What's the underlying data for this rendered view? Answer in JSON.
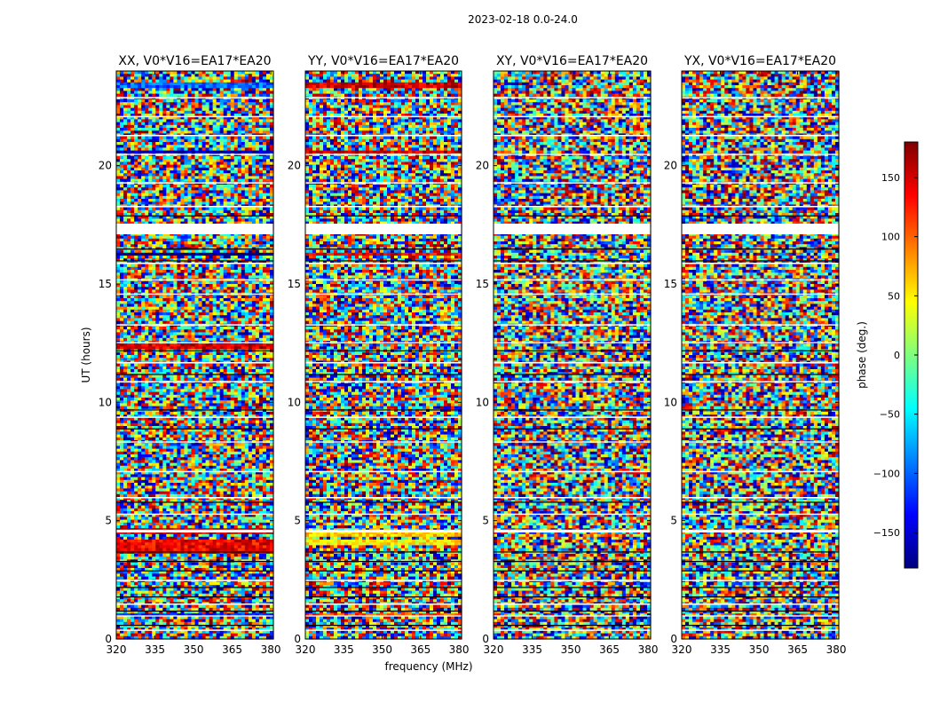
{
  "figure": {
    "suptitle": "2023-02-18 0.0-24.0",
    "xlabel": "frequency (MHz)",
    "ylabel": "UT (hours)"
  },
  "colorbar": {
    "label": "phase (deg.)",
    "range": [
      -180,
      180
    ],
    "ticks": [
      150,
      100,
      50,
      0,
      -50,
      -100,
      -150
    ],
    "tick_labels": [
      "150",
      "100",
      "50",
      "0",
      "−50",
      "−100",
      "−150"
    ],
    "colormap": "jet",
    "colors": [
      "#00007f",
      "#0000ff",
      "#007fff",
      "#00ffff",
      "#7fff7f",
      "#ffff00",
      "#ff7f00",
      "#ff0000",
      "#7f0000"
    ]
  },
  "chart_data": [
    {
      "type": "heatmap",
      "title": "XX, V0*V16=EA17*EA20",
      "x_range": [
        320,
        381
      ],
      "y_range": [
        0,
        24
      ],
      "x_ticks": [
        320,
        335,
        350,
        365,
        380
      ],
      "y_ticks": [
        0,
        5,
        10,
        15,
        20
      ],
      "y_tick_labels": [
        "0",
        "5",
        "10",
        "15",
        "20"
      ],
      "value": "phase (deg.)",
      "bands": [
        {
          "ut": [
            23.25,
            23.55
          ],
          "phase": -100
        },
        {
          "ut": [
            20.5,
            20.65
          ],
          "phase": -160
        },
        {
          "ut": [
            16.2,
            16.32
          ],
          "phase": -180
        },
        {
          "ut": [
            12.3,
            12.42
          ],
          "phase": 150
        },
        {
          "ut": [
            4.5,
            4.65
          ],
          "phase": 160
        },
        {
          "ut": [
            3.6,
            4.25
          ],
          "phase": 140
        },
        {
          "ut": [
            0.9,
            1.05
          ],
          "phase": -130
        }
      ]
    },
    {
      "type": "heatmap",
      "title": "YY, V0*V16=EA17*EA20",
      "x_range": [
        320,
        381
      ],
      "y_range": [
        0,
        24
      ],
      "x_ticks": [
        320,
        335,
        350,
        365,
        380
      ],
      "y_ticks": [
        0,
        5,
        10,
        15,
        20
      ],
      "y_tick_labels": [
        "0",
        "5",
        "10",
        "15",
        "20"
      ],
      "value": "phase (deg.)",
      "bands": [
        {
          "ut": [
            23.25,
            23.55
          ],
          "phase": 150
        },
        {
          "ut": [
            20.5,
            20.65
          ],
          "phase": 150
        },
        {
          "ut": [
            16.2,
            16.32
          ],
          "phase": 140
        },
        {
          "ut": [
            4.3,
            4.6
          ],
          "phase": 60
        },
        {
          "ut": [
            3.9,
            4.25
          ],
          "phase": 50
        },
        {
          "ut": [
            0.9,
            1.05
          ],
          "phase": 110
        }
      ]
    },
    {
      "type": "heatmap",
      "title": "XY, V0*V16=EA17*EA20",
      "x_range": [
        320,
        381
      ],
      "y_range": [
        0,
        24
      ],
      "x_ticks": [
        320,
        335,
        350,
        365,
        380
      ],
      "y_ticks": [
        0,
        5,
        10,
        15,
        20
      ],
      "y_tick_labels": [
        "0",
        "5",
        "10",
        "15",
        "20"
      ],
      "value": "phase (deg.)",
      "bands": []
    },
    {
      "type": "heatmap",
      "title": "YX, V0*V16=EA17*EA20",
      "x_range": [
        320,
        381
      ],
      "y_range": [
        0,
        24
      ],
      "x_ticks": [
        320,
        335,
        350,
        365,
        380
      ],
      "y_ticks": [
        0,
        5,
        10,
        15,
        20
      ],
      "y_tick_labels": [
        "0",
        "5",
        "10",
        "15",
        "20"
      ],
      "value": "phase (deg.)",
      "bands": []
    }
  ]
}
